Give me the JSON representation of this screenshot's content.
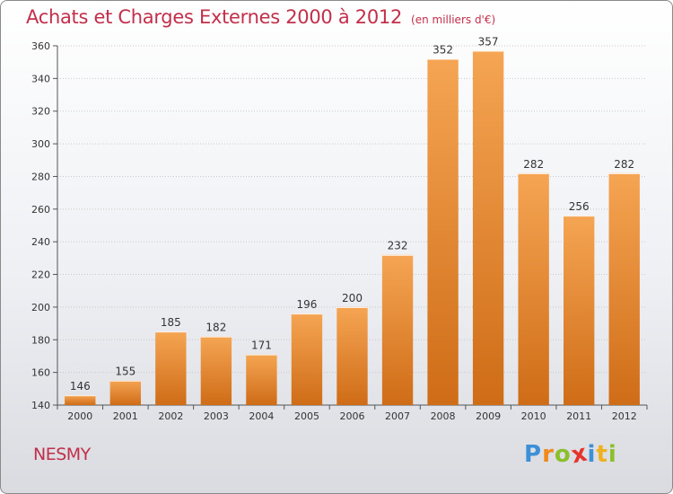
{
  "chart_data": {
    "type": "bar",
    "title": "Achats et Charges Externes 2000 à 2012",
    "subtitle": "(en milliers d'€)",
    "xlabel": "",
    "ylabel": "",
    "categories": [
      "2000",
      "2001",
      "2002",
      "2003",
      "2004",
      "2005",
      "2006",
      "2007",
      "2008",
      "2009",
      "2010",
      "2011",
      "2012"
    ],
    "values": [
      146,
      155,
      185,
      182,
      171,
      196,
      200,
      232,
      352,
      357,
      282,
      256,
      282
    ],
    "data_labels": [
      "146",
      "155",
      "185",
      "182",
      "171",
      "196",
      "200",
      "232",
      "352",
      "357",
      "282",
      "256",
      "282"
    ],
    "ylim": [
      140,
      360
    ],
    "yticks": [
      "140",
      "160",
      "180",
      "200",
      "220",
      "240",
      "260",
      "280",
      "300",
      "320",
      "340",
      "360"
    ],
    "ytick_values": [
      140,
      160,
      180,
      200,
      220,
      240,
      260,
      280,
      300,
      320,
      340,
      360
    ],
    "grid": true,
    "legend": "none",
    "bar_color_top": "#f5a553",
    "bar_color_bottom": "#cf6c17"
  },
  "footer": {
    "commune": "NESMY",
    "logo_letters": [
      "P",
      "r",
      "o",
      "x",
      "i",
      "t",
      "i"
    ],
    "logo_colors": [
      "#3d8fd6",
      "#f08a1c",
      "#8bbf2b",
      "#e5352b",
      "#3d8fd6",
      "#f0b21c",
      "#8bbf2b"
    ]
  }
}
